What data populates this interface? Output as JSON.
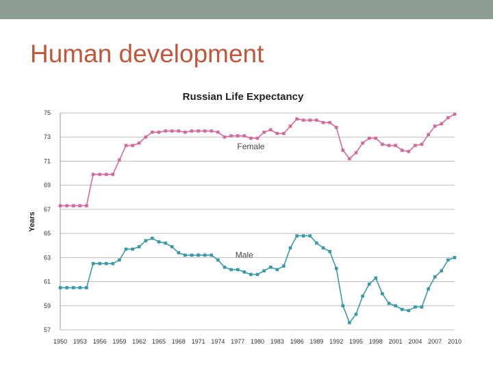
{
  "slide": {
    "title": "Human development"
  },
  "colors": {
    "top_bar": "#8d9d94",
    "title": "#c0573a",
    "female": "#d26a9c",
    "male": "#3b98a8",
    "grid": "#bdbdbd"
  },
  "chart_data": {
    "type": "line",
    "title": "Russian Life Expectancy",
    "ylabel": "Years",
    "xlabel": "",
    "ylim": [
      57,
      75
    ],
    "yticks": [
      57,
      59,
      61,
      63,
      65,
      67,
      69,
      71,
      73,
      75
    ],
    "xlim": [
      1950,
      2010
    ],
    "xticks": [
      1950,
      1953,
      1956,
      1959,
      1962,
      1965,
      1968,
      1971,
      1974,
      1977,
      1980,
      1983,
      1986,
      1989,
      1992,
      1995,
      1998,
      2001,
      2004,
      2007,
      2010
    ],
    "x": [
      1950,
      1951,
      1952,
      1953,
      1954,
      1955,
      1956,
      1957,
      1958,
      1959,
      1960,
      1961,
      1962,
      1963,
      1964,
      1965,
      1966,
      1967,
      1968,
      1969,
      1970,
      1971,
      1972,
      1973,
      1974,
      1975,
      1976,
      1977,
      1978,
      1979,
      1980,
      1981,
      1982,
      1983,
      1984,
      1985,
      1986,
      1987,
      1988,
      1989,
      1990,
      1991,
      1992,
      1993,
      1994,
      1995,
      1996,
      1997,
      1998,
      1999,
      2000,
      2001,
      2002,
      2003,
      2004,
      2005,
      2006,
      2007,
      2008,
      2009,
      2010
    ],
    "series": [
      {
        "name": "Female",
        "label": "Female",
        "values": [
          67.3,
          67.3,
          67.3,
          67.3,
          67.3,
          69.9,
          69.9,
          69.9,
          69.9,
          71.1,
          72.3,
          72.3,
          72.5,
          73.0,
          73.4,
          73.4,
          73.5,
          73.5,
          73.5,
          73.4,
          73.5,
          73.5,
          73.5,
          73.5,
          73.4,
          73.0,
          73.1,
          73.1,
          73.1,
          72.9,
          72.9,
          73.4,
          73.6,
          73.3,
          73.3,
          73.9,
          74.5,
          74.4,
          74.4,
          74.4,
          74.2,
          74.2,
          73.8,
          71.9,
          71.2,
          71.7,
          72.5,
          72.9,
          72.9,
          72.4,
          72.3,
          72.3,
          71.9,
          71.8,
          72.3,
          72.4,
          73.2,
          73.9,
          74.1,
          74.6,
          74.9
        ]
      },
      {
        "name": "Male",
        "label": "Male",
        "values": [
          60.5,
          60.5,
          60.5,
          60.5,
          60.5,
          62.5,
          62.5,
          62.5,
          62.5,
          62.8,
          63.7,
          63.7,
          63.9,
          64.4,
          64.6,
          64.3,
          64.2,
          63.9,
          63.4,
          63.2,
          63.2,
          63.2,
          63.2,
          63.2,
          62.8,
          62.2,
          62.0,
          62.0,
          61.8,
          61.6,
          61.6,
          61.9,
          62.2,
          62.0,
          62.3,
          63.8,
          64.8,
          64.8,
          64.8,
          64.2,
          63.8,
          63.5,
          62.1,
          59.0,
          57.6,
          58.3,
          59.8,
          60.8,
          61.3,
          60.0,
          59.2,
          59.0,
          58.7,
          58.6,
          58.9,
          58.9,
          60.4,
          61.4,
          61.9,
          62.8,
          63.0
        ]
      }
    ]
  }
}
